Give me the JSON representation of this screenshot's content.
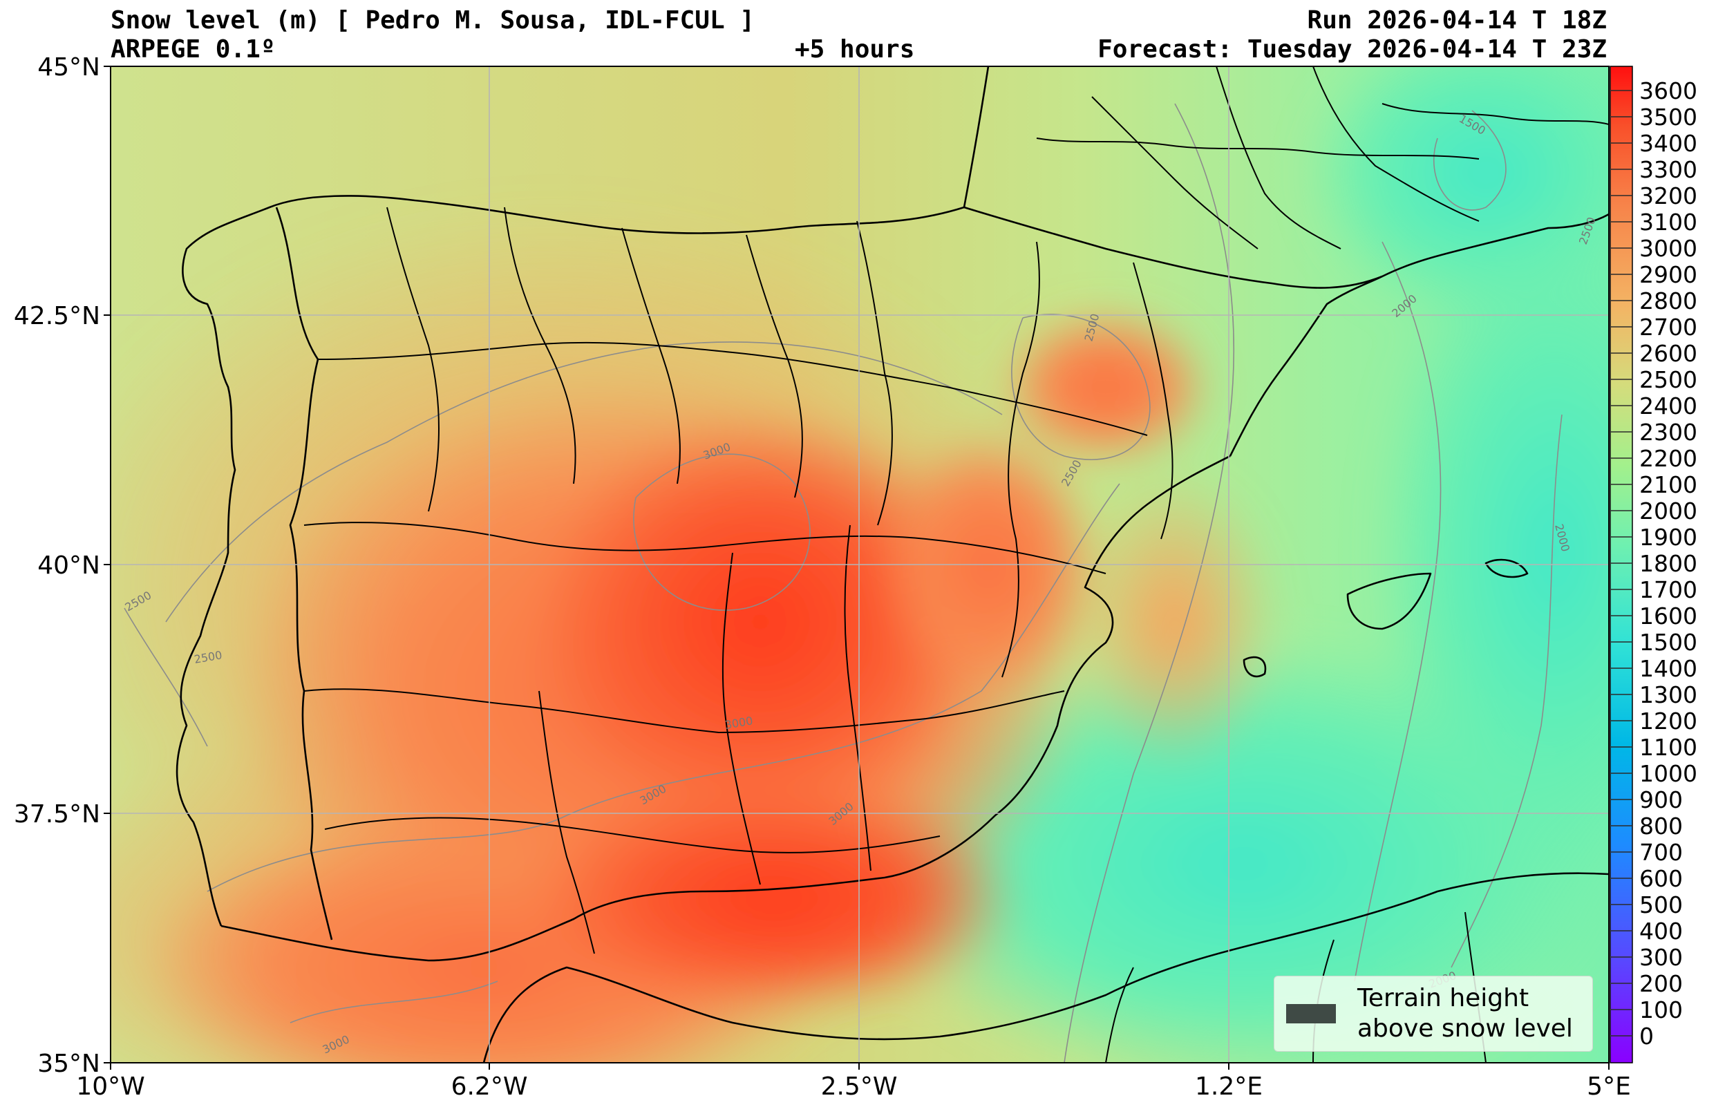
{
  "header": {
    "title": "Snow level (m) [ Pedro M. Sousa, IDL-FCUL ]",
    "model": "ARPEGE 0.1º",
    "lead_time": "+5 hours",
    "run": "Run 2026-04-14 T 18Z",
    "forecast": "Forecast: Tuesday 2026-04-14 T 23Z"
  },
  "axes": {
    "lat_labels": [
      "45°N",
      "42.5°N",
      "40°N",
      "37.5°N",
      "35°N"
    ],
    "lon_labels": [
      "10°W",
      "6.2°W",
      "2.5°W",
      "1.2°E",
      "5°E"
    ]
  },
  "colorbar": {
    "labels": [
      "3600",
      "3500",
      "3400",
      "3300",
      "3200",
      "3100",
      "3000",
      "2900",
      "2800",
      "2700",
      "2600",
      "2500",
      "2400",
      "2300",
      "2200",
      "2100",
      "2000",
      "1900",
      "1800",
      "1700",
      "1600",
      "1500",
      "1400",
      "1300",
      "1200",
      "1100",
      "1000",
      "900",
      "800",
      "700",
      "600",
      "500",
      "400",
      "300",
      "200",
      "100",
      "0"
    ]
  },
  "contour_labels": [
    "1500",
    "2500",
    "2000",
    "2500",
    "2000",
    "3000",
    "2500",
    "2500",
    "2500",
    "3000",
    "3000",
    "3000",
    "3000",
    "2000"
  ],
  "legend": {
    "line1": "Terrain height",
    "line2": "above snow level",
    "swatch_color": "#3f4a45"
  },
  "colors": {
    "high": "#ff3a1c",
    "mid": "#f79a55",
    "low": "#44e8c8"
  }
}
